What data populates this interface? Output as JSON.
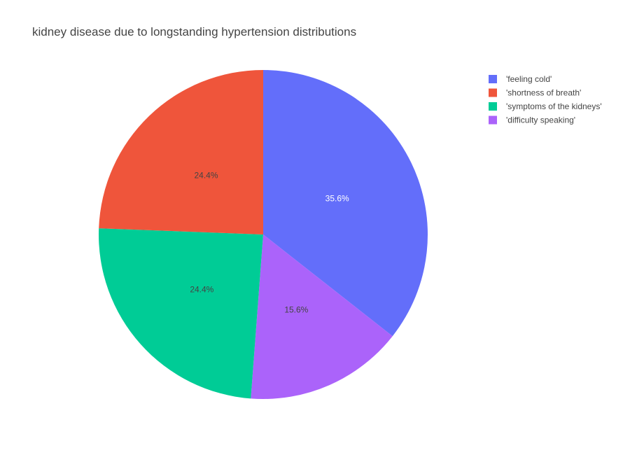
{
  "chart_data": {
    "type": "pie",
    "title": "kidney disease due to longstanding hypertension distributions",
    "categories": [
      "'feeling cold'",
      "'shortness of breath'",
      "'symptoms of the kidneys'",
      "'difficulty speaking'"
    ],
    "values": [
      35.6,
      24.4,
      24.4,
      15.6
    ],
    "labels": [
      "35.6%",
      "24.4%",
      "24.4%",
      "15.6%"
    ],
    "colors": [
      "#636efa",
      "#ef553b",
      "#00cc96",
      "#ab63fa"
    ],
    "label_colors": [
      "#ffffff",
      "#444444",
      "#444444",
      "#444444"
    ],
    "slice_order": [
      0,
      3,
      2,
      1
    ],
    "direction": "clockwise",
    "start": "top",
    "legend_position": "top-right"
  }
}
